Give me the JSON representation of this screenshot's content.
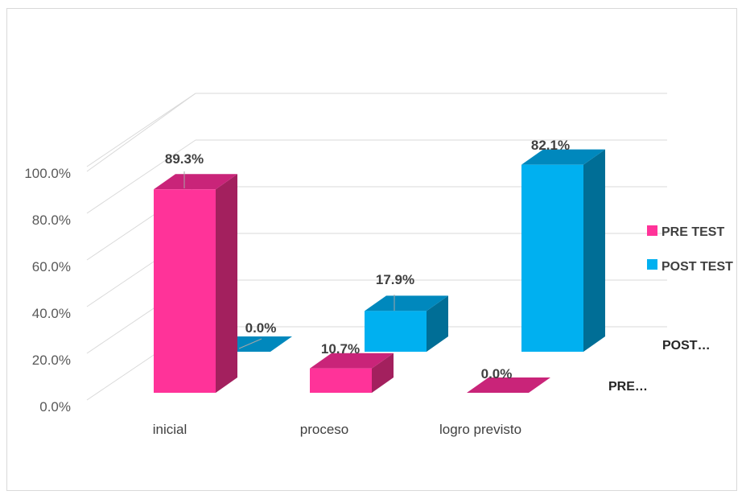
{
  "chart_data": {
    "type": "bar",
    "title": "",
    "categories": [
      "inicial",
      "proceso",
      "logro previsto"
    ],
    "series": [
      {
        "name": "PRE TEST",
        "values": [
          89.3,
          10.7,
          0.0
        ],
        "labels": [
          "89.3%",
          "10.7%",
          "0.0%"
        ]
      },
      {
        "name": "POST TEST",
        "values": [
          0.0,
          17.9,
          82.1
        ],
        "labels": [
          "0.0%",
          "17.9%",
          "82.1%"
        ]
      }
    ],
    "y_ticks": [
      "0.0%",
      "20.0%",
      "40.0%",
      "60.0%",
      "80.0%",
      "100.0%"
    ],
    "ylim": [
      0,
      100
    ],
    "depth_labels": [
      "PRE…",
      "POST…"
    ],
    "legend_position": "right",
    "grid": true,
    "colors": {
      "pre_front": "#ff3399",
      "pre_side": "#a3205e",
      "pre_top": "#c92479",
      "post_front": "#00b0f0",
      "post_side": "#006e96",
      "post_top": "#0088bd",
      "grid": "#d9d9d9"
    }
  }
}
